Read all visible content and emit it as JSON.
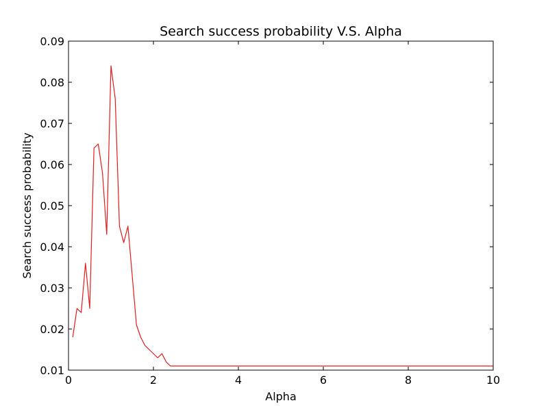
{
  "chart_data": {
    "type": "line",
    "title": "Search success probability V.S. Alpha",
    "xlabel": "Alpha",
    "ylabel": "Search success probability",
    "xlim": [
      0,
      10
    ],
    "ylim": [
      0.01,
      0.09
    ],
    "x_ticks": [
      0,
      2,
      4,
      6,
      8,
      10
    ],
    "x_tick_labels": [
      "0",
      "2",
      "4",
      "6",
      "8",
      "10"
    ],
    "y_ticks": [
      0.01,
      0.02,
      0.03,
      0.04,
      0.05,
      0.06,
      0.07,
      0.08,
      0.09
    ],
    "y_tick_labels": [
      "0.01",
      "0.02",
      "0.03",
      "0.04",
      "0.05",
      "0.06",
      "0.07",
      "0.08",
      "0.09"
    ],
    "grid": false,
    "legend": "none",
    "series": [
      {
        "color": "#e31a1c",
        "x": [
          0.1,
          0.2,
          0.3,
          0.4,
          0.5,
          0.6,
          0.7,
          0.8,
          0.9,
          1.0,
          1.1,
          1.2,
          1.3,
          1.4,
          1.5,
          1.6,
          1.7,
          1.8,
          1.9,
          2.0,
          2.1,
          2.2,
          2.3,
          2.4,
          2.5,
          3.0,
          4.0,
          5.0,
          6.0,
          7.0,
          8.0,
          9.0,
          10.0
        ],
        "y": [
          0.018,
          0.025,
          0.024,
          0.036,
          0.025,
          0.064,
          0.065,
          0.058,
          0.043,
          0.084,
          0.076,
          0.045,
          0.041,
          0.045,
          0.033,
          0.021,
          0.018,
          0.016,
          0.015,
          0.014,
          0.013,
          0.014,
          0.012,
          0.011,
          0.011,
          0.011,
          0.011,
          0.011,
          0.011,
          0.011,
          0.011,
          0.011,
          0.011
        ]
      }
    ]
  }
}
